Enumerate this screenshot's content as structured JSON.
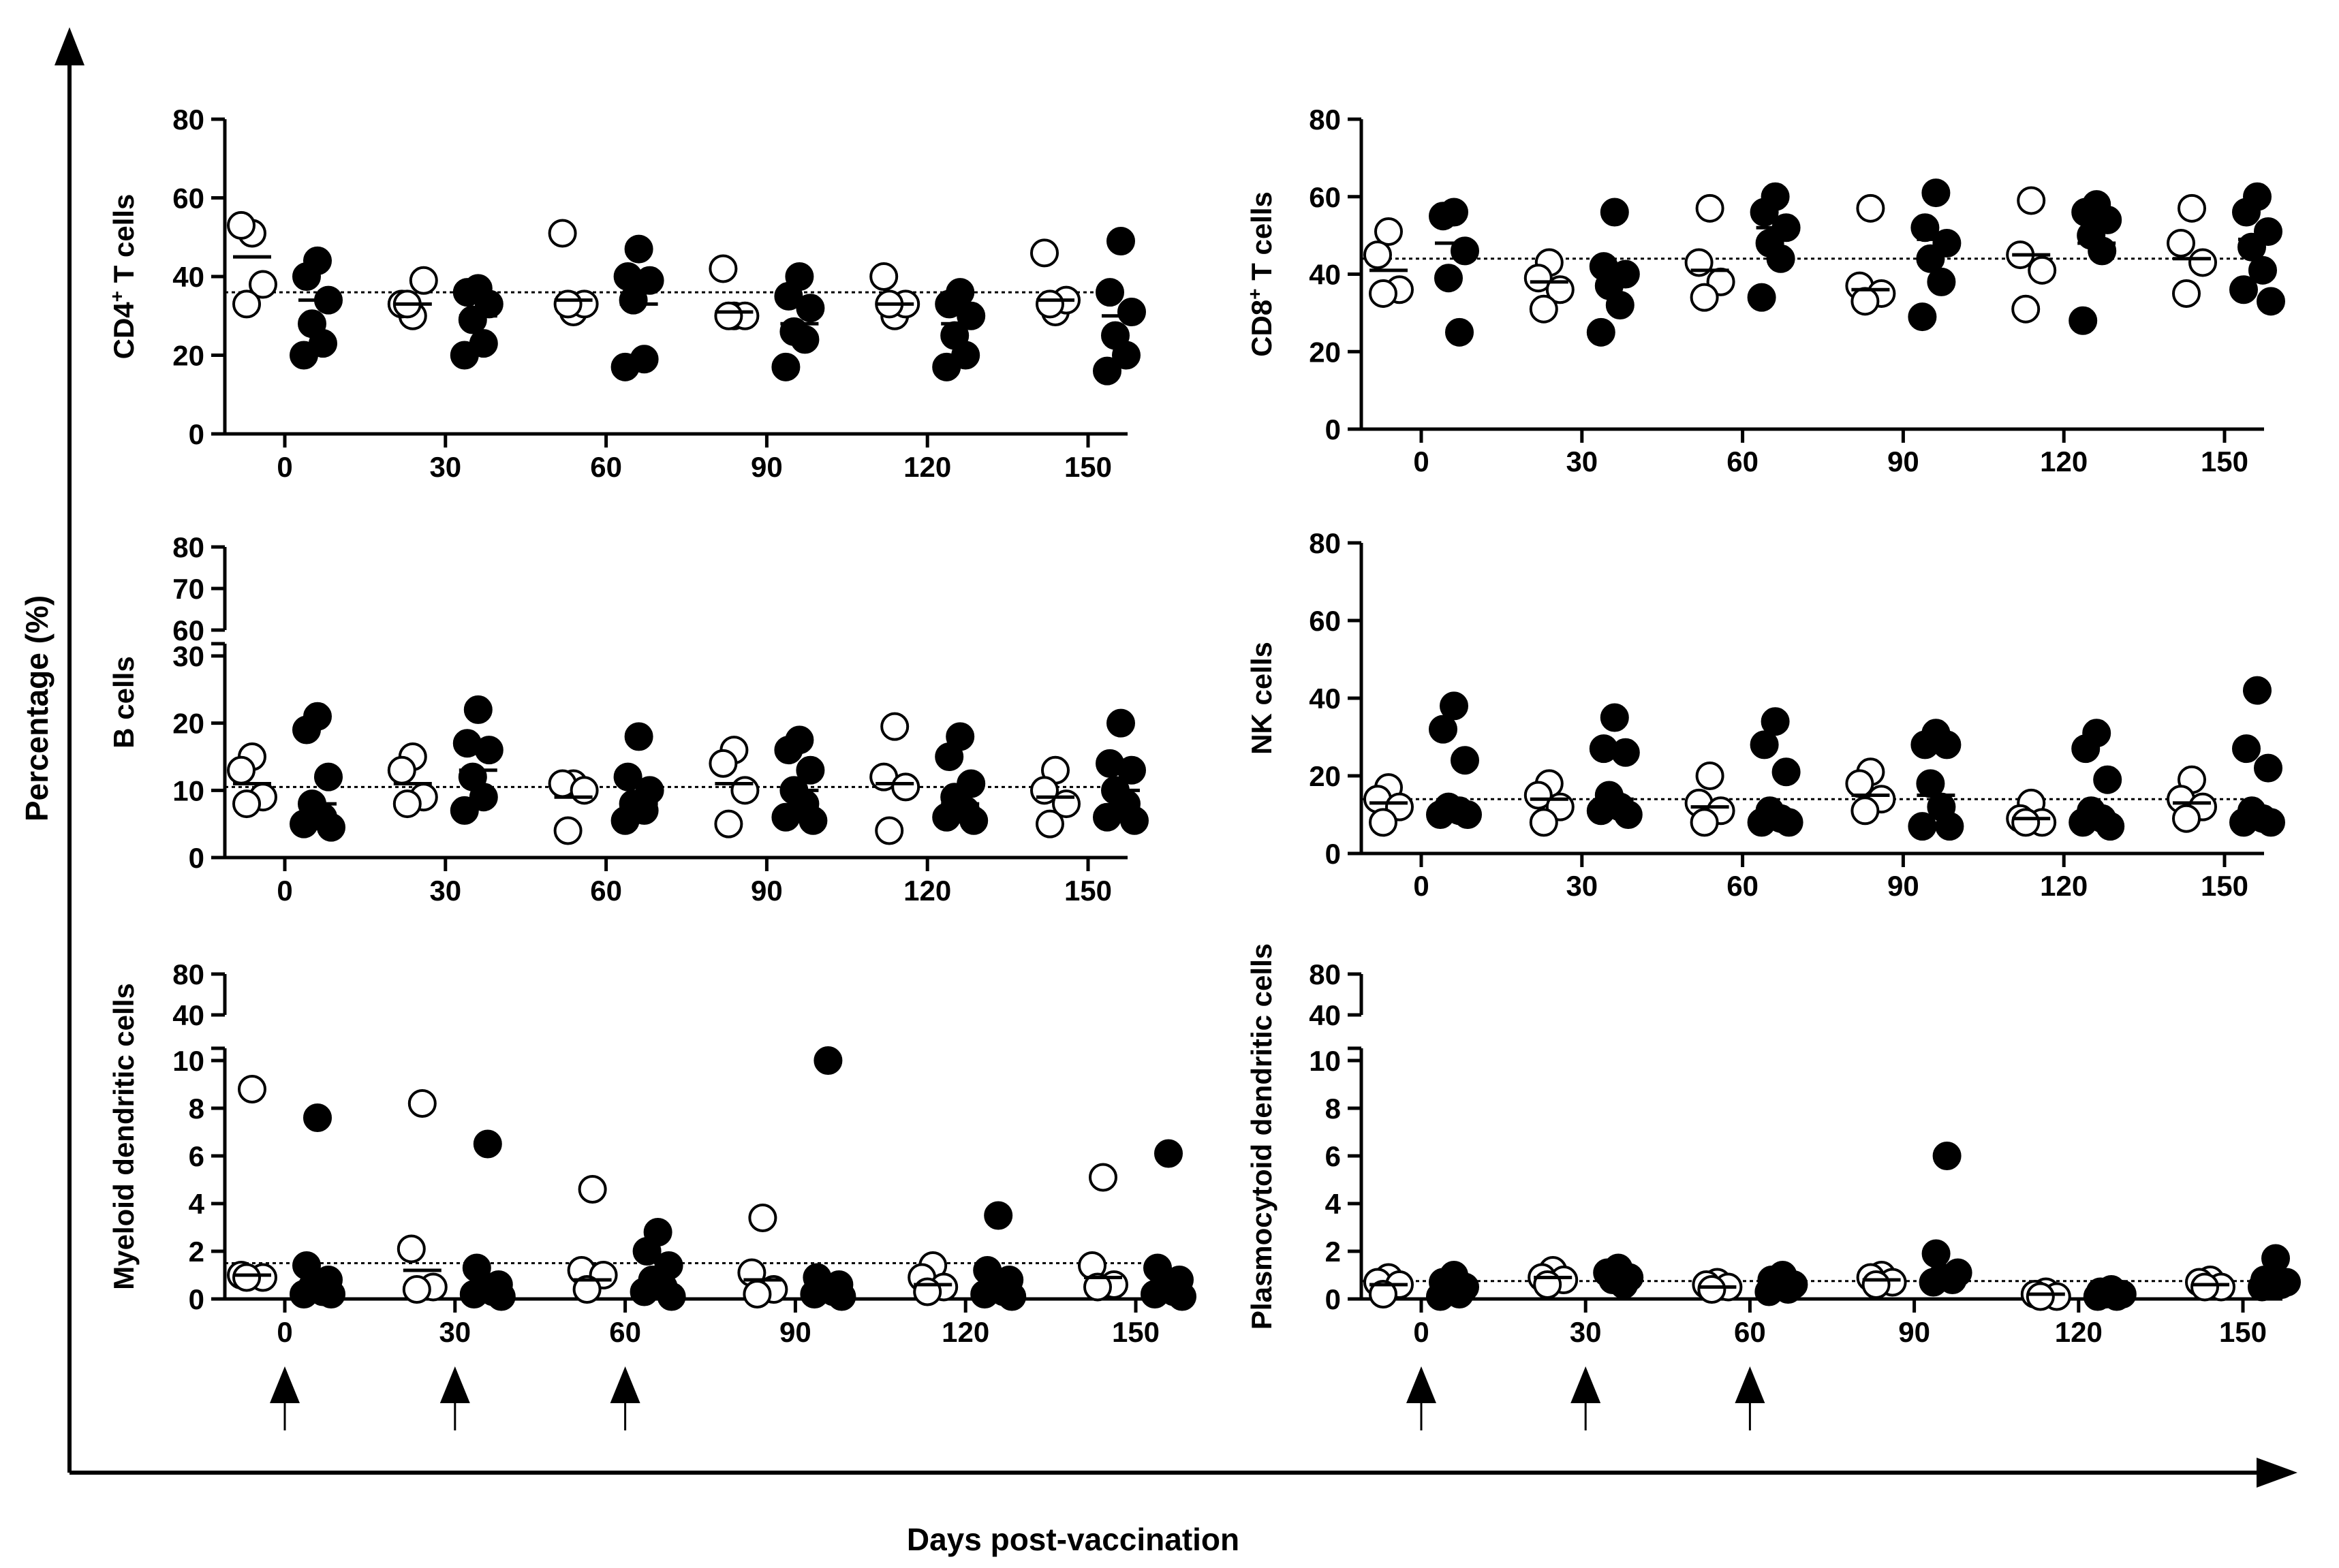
{
  "figure": {
    "y_axis_label": "Percentage (%)",
    "x_axis_label": "Days post-vaccination",
    "colors": {
      "open": "#ffffff",
      "filled": "#000000",
      "stroke": "#000000"
    }
  },
  "chart_data": [
    {
      "type": "scatter",
      "ylabel_main": "CD4",
      "ylabel_sup": "+",
      "ylabel_rest": " T cells",
      "categories": [
        "0",
        "30",
        "60",
        "90",
        "120",
        "150"
      ],
      "ylim": [
        0,
        80
      ],
      "yticks": [
        0,
        20,
        40,
        60,
        80
      ],
      "reference_line": 36,
      "arrows": [],
      "series": [
        {
          "name": "open",
          "groups": [
            [
              51,
              53,
              38,
              33
            ],
            [
              30,
              33,
              39,
              33
            ],
            [
              31,
              51,
              33,
              33
            ],
            [
              30,
              42,
              30,
              30
            ],
            [
              30,
              40,
              33,
              33
            ],
            [
              31,
              46,
              34,
              33
            ]
          ],
          "means": [
            45,
            33,
            34,
            31,
            33,
            34
          ]
        },
        {
          "name": "filled",
          "groups": [
            [
              44,
              40,
              34,
              28,
              23,
              20
            ],
            [
              37,
              36,
              33,
              29,
              23,
              20
            ],
            [
              47,
              40,
              39,
              34,
              19,
              17
            ],
            [
              40,
              35,
              32,
              26,
              24,
              17
            ],
            [
              36,
              33,
              30,
              25,
              20,
              17
            ],
            [
              49,
              36,
              31,
              25,
              20,
              16
            ]
          ],
          "means": [
            34,
            30,
            33,
            28,
            28,
            30
          ]
        }
      ]
    },
    {
      "type": "scatter",
      "ylabel_main": "CD8",
      "ylabel_sup": "+",
      "ylabel_rest": " T cells",
      "categories": [
        "0",
        "30",
        "60",
        "90",
        "120",
        "150"
      ],
      "ylim": [
        0,
        80
      ],
      "yticks": [
        0,
        20,
        40,
        60,
        80
      ],
      "reference_line": 44,
      "arrows": [],
      "series": [
        {
          "name": "open",
          "groups": [
            [
              51,
              45,
              36,
              35
            ],
            [
              43,
              39,
              36,
              31
            ],
            [
              57,
              43,
              38,
              34
            ],
            [
              57,
              37,
              35,
              33
            ],
            [
              59,
              45,
              41,
              31
            ],
            [
              57,
              48,
              43,
              35
            ]
          ],
          "means": [
            41,
            38,
            41,
            36,
            45,
            44
          ]
        },
        {
          "name": "filled",
          "groups": [
            [
              56,
              55,
              46,
              39,
              25
            ],
            [
              56,
              42,
              40,
              37,
              32,
              25
            ],
            [
              60,
              56,
              52,
              48,
              44,
              34
            ],
            [
              61,
              52,
              48,
              44,
              38,
              29
            ],
            [
              58,
              56,
              54,
              50,
              46,
              28
            ],
            [
              60,
              56,
              51,
              47,
              41,
              36,
              33
            ]
          ],
          "means": [
            48,
            40,
            52,
            49,
            48,
            49
          ]
        }
      ]
    },
    {
      "type": "scatter",
      "ylabel_main": "B cells",
      "ylabel_sup": "",
      "ylabel_rest": "",
      "categories": [
        "0",
        "30",
        "60",
        "90",
        "120",
        "150"
      ],
      "ylim": [
        0,
        30
      ],
      "upper_ticks": [
        60,
        70,
        80
      ],
      "yticks": [
        0,
        10,
        20,
        30
      ],
      "reference_line": 10.5,
      "arrows": [],
      "series": [
        {
          "name": "open",
          "groups": [
            [
              15,
              13,
              9,
              8
            ],
            [
              15,
              13,
              9,
              8
            ],
            [
              11,
              11,
              10,
              4
            ],
            [
              16,
              14,
              10,
              5
            ],
            [
              19.5,
              12,
              10.5,
              4
            ],
            [
              13,
              10,
              8,
              5
            ]
          ],
          "means": [
            11,
            11,
            9,
            11,
            11,
            9
          ]
        },
        {
          "name": "filled",
          "groups": [
            [
              21,
              19,
              12,
              8,
              6,
              5,
              4.5
            ],
            [
              22,
              17,
              16,
              12,
              9,
              7
            ],
            [
              18,
              12,
              10,
              8,
              7,
              5.5
            ],
            [
              17.5,
              16,
              13,
              10,
              8,
              6,
              5.5
            ],
            [
              18,
              15,
              11,
              9,
              7,
              6,
              5.5
            ],
            [
              20,
              14,
              13,
              10,
              8,
              6,
              5.5
            ]
          ],
          "means": [
            8,
            13,
            8,
            10,
            8,
            10
          ]
        }
      ]
    },
    {
      "type": "scatter",
      "ylabel_main": "NK cells",
      "ylabel_sup": "",
      "ylabel_rest": "",
      "categories": [
        "0",
        "30",
        "60",
        "90",
        "120",
        "150"
      ],
      "ylim": [
        0,
        80
      ],
      "yticks": [
        0,
        20,
        40,
        60,
        80
      ],
      "reference_line": 14,
      "arrows": [],
      "series": [
        {
          "name": "open",
          "groups": [
            [
              17,
              14,
              12,
              8
            ],
            [
              18,
              15,
              12,
              8
            ],
            [
              20,
              13,
              11,
              8
            ],
            [
              21,
              18,
              14,
              11
            ],
            [
              13,
              9,
              8,
              8
            ],
            [
              19,
              14,
              12,
              9
            ]
          ],
          "means": [
            13,
            14,
            12,
            15,
            9,
            13
          ]
        },
        {
          "name": "filled",
          "groups": [
            [
              38,
              32,
              24,
              12,
              11,
              10,
              10
            ],
            [
              35,
              27,
              26,
              15,
              12,
              11,
              10
            ],
            [
              34,
              28,
              21,
              11,
              9,
              8,
              8
            ],
            [
              31,
              28,
              28,
              18,
              12,
              7,
              7
            ],
            [
              31,
              27,
              19,
              11,
              9,
              8,
              7
            ],
            [
              42,
              27,
              22,
              11,
              9,
              8,
              8
            ]
          ],
          "means": [
            12,
            14,
            11,
            15,
            10,
            11
          ]
        }
      ]
    },
    {
      "type": "scatter",
      "ylabel_main": "Myeloid dendritic cells",
      "ylabel_sup": "",
      "ylabel_rest": "",
      "categories": [
        "0",
        "30",
        "60",
        "90",
        "120",
        "150"
      ],
      "ylim": [
        0,
        10
      ],
      "upper_ticks": [
        40,
        80
      ],
      "yticks": [
        0,
        2,
        4,
        6,
        8,
        10
      ],
      "reference_line": 1.5,
      "arrows": [
        "0",
        "30",
        "60"
      ],
      "series": [
        {
          "name": "open",
          "groups": [
            [
              8.8,
              1.0,
              0.9,
              0.9
            ],
            [
              8.2,
              2.1,
              0.5,
              0.4
            ],
            [
              4.6,
              1.2,
              1.0,
              0.4
            ],
            [
              3.4,
              1.1,
              0.4,
              0.2
            ],
            [
              1.4,
              0.9,
              0.5,
              0.3
            ],
            [
              5.1,
              1.4,
              0.6,
              0.5
            ]
          ],
          "means": [
            1.0,
            1.2,
            0.8,
            0.8,
            0.6,
            0.9
          ]
        },
        {
          "name": "filled",
          "groups": [
            [
              7.6,
              1.4,
              0.8,
              0.5,
              0.3,
              0.2,
              0.2
            ],
            [
              6.5,
              1.3,
              0.6,
              0.4,
              0.3,
              0.2,
              0.1
            ],
            [
              2.8,
              2.0,
              1.4,
              0.8,
              0.5,
              0.3,
              0.1
            ],
            [
              10.0,
              0.9,
              0.6,
              0.4,
              0.3,
              0.2,
              0.1
            ],
            [
              3.5,
              1.2,
              0.8,
              0.5,
              0.3,
              0.2,
              0.1
            ],
            [
              6.1,
              1.3,
              0.8,
              0.5,
              0.3,
              0.2,
              0.1
            ]
          ],
          "means": [
            0.5,
            0.5,
            0.5,
            0.4,
            0.4,
            0.4
          ]
        }
      ]
    },
    {
      "type": "scatter",
      "ylabel_main": "Plasmocytoid dendritic cells",
      "ylabel_sup": "",
      "ylabel_rest": "",
      "categories": [
        "0",
        "30",
        "60",
        "90",
        "120",
        "150"
      ],
      "ylim": [
        0,
        10
      ],
      "upper_ticks": [
        40,
        80
      ],
      "yticks": [
        0,
        2,
        4,
        6,
        8,
        10
      ],
      "reference_line": 0.75,
      "arrows": [
        "0",
        "30",
        "60"
      ],
      "series": [
        {
          "name": "open",
          "groups": [
            [
              0.9,
              0.7,
              0.6,
              0.2
            ],
            [
              1.2,
              0.9,
              0.8,
              0.6
            ],
            [
              0.7,
              0.6,
              0.5,
              0.4
            ],
            [
              1.0,
              0.9,
              0.7,
              0.6
            ],
            [
              0.3,
              0.2,
              0.1,
              0.1
            ],
            [
              0.8,
              0.7,
              0.5,
              0.5
            ]
          ],
          "means": [
            0.6,
            0.9,
            0.5,
            0.8,
            0.2,
            0.6
          ]
        },
        {
          "name": "filled",
          "groups": [
            [
              1.0,
              0.7,
              0.5,
              0.4,
              0.2,
              0.1
            ],
            [
              1.3,
              1.1,
              0.9,
              0.8,
              0.6
            ],
            [
              1.0,
              0.8,
              0.6,
              0.5,
              0.4,
              0.3
            ],
            [
              6.0,
              1.9,
              1.1,
              0.9,
              0.8,
              0.7
            ],
            [
              0.4,
              0.3,
              0.2,
              0.2,
              0.1,
              0.1
            ],
            [
              1.7,
              0.8,
              0.7,
              0.6,
              0.6,
              0.5
            ]
          ],
          "means": [
            0.5,
            0.9,
            0.6,
            1.0,
            0.2,
            0.7
          ]
        }
      ]
    }
  ]
}
